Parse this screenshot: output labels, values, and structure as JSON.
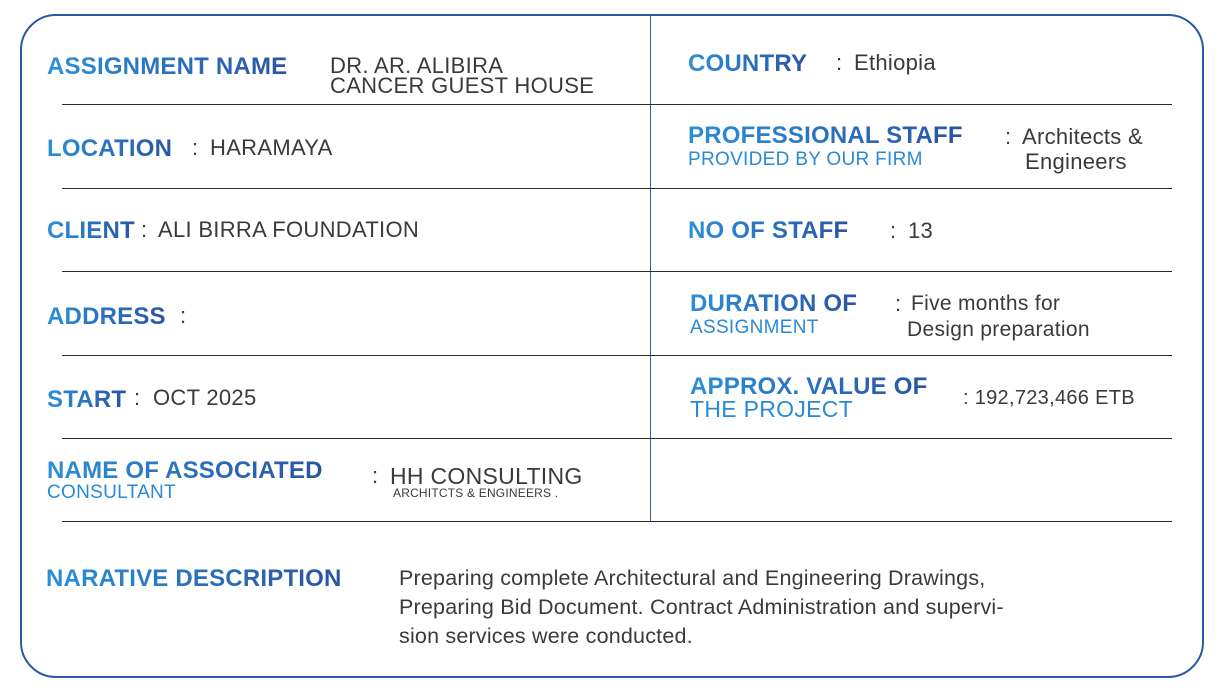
{
  "left": {
    "assignment_name": {
      "label": "ASSIGNMENT NAME",
      "value_lines": [
        "DR. AR. ALIBIRA",
        "CANCER GUEST HOUSE"
      ]
    },
    "location": {
      "label": "LOCATION",
      "sep": ":",
      "value": "HARAMAYA"
    },
    "client": {
      "label": "CLIENT",
      "sep": ":",
      "value": "ALI BIRRA FOUNDATION"
    },
    "address": {
      "label": "ADDRESS",
      "sep": ":",
      "value": ""
    },
    "start": {
      "label": "START",
      "sep": ":",
      "value": "OCT 2025"
    },
    "associated_consultant": {
      "label": "NAME OF ASSOCIATED",
      "sublabel": "CONSULTANT",
      "sep": ":",
      "value": "HH CONSULTING",
      "value_sub": "ARCHITCTS & ENGINEERS ."
    }
  },
  "right": {
    "country": {
      "label": "COUNTRY",
      "sep": ":",
      "value": "Ethiopia"
    },
    "professional_staff": {
      "label": "PROFESSIONAL STAFF",
      "sublabel": "PROVIDED  BY OUR FIRM",
      "sep": ":",
      "value_lines": [
        "Architects &",
        "Engineers"
      ]
    },
    "no_of_staff": {
      "label": "NO OF STAFF",
      "sep": ":",
      "value": "13"
    },
    "duration": {
      "label": "DURATION OF",
      "sublabel": "ASSIGNMENT",
      "sep": ":",
      "value_lines": [
        "Five months for",
        "Design preparation"
      ]
    },
    "approx_value": {
      "label": "APPROX. VALUE OF",
      "sublabel": "THE PROJECT",
      "value": ": 192,723,466 ETB"
    }
  },
  "narrative": {
    "label": "NARATIVE DESCRIPTION",
    "lines": [
      "Preparing complete Architectural and Engineering Drawings,",
      "Preparing Bid Document.  Contract Administration and supervi-",
      "sion services were conducted."
    ]
  },
  "colors": {
    "label_start": "#2b8fd8",
    "label_end": "#2a54a4",
    "border": "#2a5aa6",
    "text": "#3a3a3a"
  }
}
